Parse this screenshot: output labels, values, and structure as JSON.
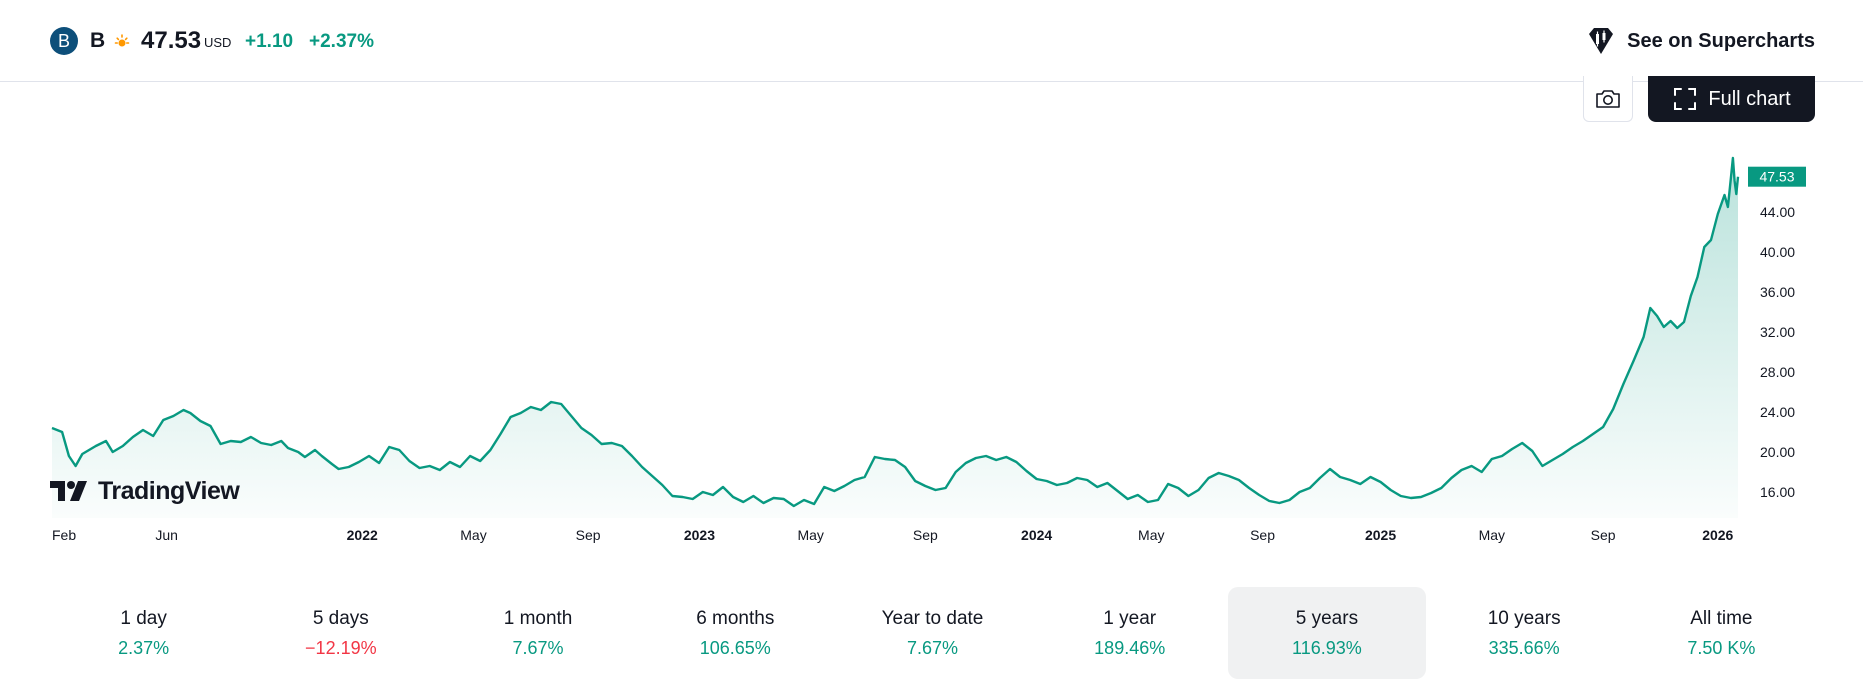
{
  "header": {
    "symbol_logo": "B",
    "symbol": "B",
    "price": "47.53",
    "currency": "USD",
    "change_abs": "+1.10",
    "change_pct": "+2.37%",
    "supercharts_label": "See on Supercharts"
  },
  "toolbar": {
    "full_chart_label": "Full chart"
  },
  "branding": {
    "tv_label": "TradingView"
  },
  "colors": {
    "line": "#089981",
    "positive": "#089981",
    "negative": "#f23645",
    "text": "#131722"
  },
  "chart_data": {
    "type": "area",
    "title": "",
    "xlabel": "",
    "ylabel": "",
    "ylim": [
      14.2,
      51.2
    ],
    "y_ticks": [
      16,
      20,
      24,
      28,
      32,
      36,
      40,
      44
    ],
    "y_tick_labels": [
      "16.00",
      "20.00",
      "24.00",
      "28.00",
      "32.00",
      "36.00",
      "40.00",
      "44.00"
    ],
    "last_price_label": "47.53",
    "last_value": 47.53,
    "x_ticks": [
      {
        "label": "Feb",
        "t": 0.0,
        "bold": false
      },
      {
        "label": "Jun",
        "t": 0.34,
        "bold": false
      },
      {
        "label": "2022",
        "t": 0.92,
        "bold": true
      },
      {
        "label": "May",
        "t": 1.25,
        "bold": false
      },
      {
        "label": "Sep",
        "t": 1.59,
        "bold": false
      },
      {
        "label": "2023",
        "t": 1.92,
        "bold": true
      },
      {
        "label": "May",
        "t": 2.25,
        "bold": false
      },
      {
        "label": "Sep",
        "t": 2.59,
        "bold": false
      },
      {
        "label": "2024",
        "t": 2.92,
        "bold": true
      },
      {
        "label": "May",
        "t": 3.26,
        "bold": false
      },
      {
        "label": "Sep",
        "t": 3.59,
        "bold": false
      },
      {
        "label": "2025",
        "t": 3.94,
        "bold": true
      },
      {
        "label": "May",
        "t": 4.27,
        "bold": false
      },
      {
        "label": "Sep",
        "t": 4.6,
        "bold": false
      },
      {
        "label": "2026",
        "t": 4.94,
        "bold": true
      }
    ],
    "t_max": 5.0,
    "series": [
      {
        "values": [
          [
            0.0,
            22.4
          ],
          [
            0.03,
            22.0
          ],
          [
            0.05,
            19.6
          ],
          [
            0.07,
            18.6
          ],
          [
            0.09,
            19.8
          ],
          [
            0.13,
            20.6
          ],
          [
            0.16,
            21.1
          ],
          [
            0.18,
            20.0
          ],
          [
            0.21,
            20.6
          ],
          [
            0.24,
            21.5
          ],
          [
            0.27,
            22.2
          ],
          [
            0.3,
            21.6
          ],
          [
            0.33,
            23.2
          ],
          [
            0.36,
            23.6
          ],
          [
            0.39,
            24.2
          ],
          [
            0.41,
            23.9
          ],
          [
            0.44,
            23.1
          ],
          [
            0.47,
            22.6
          ],
          [
            0.5,
            20.8
          ],
          [
            0.53,
            21.1
          ],
          [
            0.56,
            21.0
          ],
          [
            0.59,
            21.5
          ],
          [
            0.62,
            20.9
          ],
          [
            0.65,
            20.7
          ],
          [
            0.68,
            21.1
          ],
          [
            0.7,
            20.4
          ],
          [
            0.73,
            20.0
          ],
          [
            0.75,
            19.5
          ],
          [
            0.78,
            20.2
          ],
          [
            0.8,
            19.6
          ],
          [
            0.83,
            18.8
          ],
          [
            0.85,
            18.3
          ],
          [
            0.88,
            18.5
          ],
          [
            0.91,
            19.0
          ],
          [
            0.94,
            19.6
          ],
          [
            0.97,
            18.9
          ],
          [
            1.0,
            20.5
          ],
          [
            1.03,
            20.2
          ],
          [
            1.06,
            19.1
          ],
          [
            1.09,
            18.4
          ],
          [
            1.12,
            18.6
          ],
          [
            1.15,
            18.2
          ],
          [
            1.18,
            19.0
          ],
          [
            1.21,
            18.5
          ],
          [
            1.24,
            19.6
          ],
          [
            1.27,
            19.1
          ],
          [
            1.3,
            20.2
          ],
          [
            1.33,
            21.8
          ],
          [
            1.36,
            23.5
          ],
          [
            1.39,
            23.9
          ],
          [
            1.42,
            24.5
          ],
          [
            1.45,
            24.2
          ],
          [
            1.48,
            25.0
          ],
          [
            1.51,
            24.8
          ],
          [
            1.54,
            23.6
          ],
          [
            1.57,
            22.4
          ],
          [
            1.6,
            21.7
          ],
          [
            1.63,
            20.8
          ],
          [
            1.66,
            20.9
          ],
          [
            1.69,
            20.6
          ],
          [
            1.72,
            19.6
          ],
          [
            1.75,
            18.5
          ],
          [
            1.78,
            17.6
          ],
          [
            1.81,
            16.7
          ],
          [
            1.84,
            15.6
          ],
          [
            1.87,
            15.5
          ],
          [
            1.9,
            15.3
          ],
          [
            1.93,
            16.0
          ],
          [
            1.96,
            15.7
          ],
          [
            1.99,
            16.5
          ],
          [
            2.02,
            15.5
          ],
          [
            2.05,
            15.0
          ],
          [
            2.08,
            15.6
          ],
          [
            2.11,
            14.9
          ],
          [
            2.14,
            15.4
          ],
          [
            2.17,
            15.3
          ],
          [
            2.2,
            14.6
          ],
          [
            2.23,
            15.2
          ],
          [
            2.26,
            14.8
          ],
          [
            2.29,
            16.5
          ],
          [
            2.32,
            16.1
          ],
          [
            2.35,
            16.6
          ],
          [
            2.38,
            17.2
          ],
          [
            2.41,
            17.5
          ],
          [
            2.44,
            19.5
          ],
          [
            2.47,
            19.3
          ],
          [
            2.5,
            19.2
          ],
          [
            2.53,
            18.5
          ],
          [
            2.56,
            17.1
          ],
          [
            2.59,
            16.6
          ],
          [
            2.62,
            16.2
          ],
          [
            2.65,
            16.4
          ],
          [
            2.68,
            18.0
          ],
          [
            2.71,
            18.9
          ],
          [
            2.74,
            19.4
          ],
          [
            2.77,
            19.6
          ],
          [
            2.8,
            19.2
          ],
          [
            2.83,
            19.5
          ],
          [
            2.86,
            19.0
          ],
          [
            2.89,
            18.1
          ],
          [
            2.92,
            17.3
          ],
          [
            2.95,
            17.1
          ],
          [
            2.98,
            16.7
          ],
          [
            3.01,
            16.9
          ],
          [
            3.04,
            17.4
          ],
          [
            3.07,
            17.2
          ],
          [
            3.1,
            16.5
          ],
          [
            3.13,
            16.9
          ],
          [
            3.16,
            16.1
          ],
          [
            3.19,
            15.3
          ],
          [
            3.22,
            15.7
          ],
          [
            3.25,
            15.0
          ],
          [
            3.28,
            15.2
          ],
          [
            3.31,
            16.8
          ],
          [
            3.34,
            16.4
          ],
          [
            3.37,
            15.6
          ],
          [
            3.4,
            16.2
          ],
          [
            3.43,
            17.4
          ],
          [
            3.46,
            17.9
          ],
          [
            3.49,
            17.6
          ],
          [
            3.52,
            17.2
          ],
          [
            3.55,
            16.4
          ],
          [
            3.58,
            15.7
          ],
          [
            3.61,
            15.1
          ],
          [
            3.64,
            14.9
          ],
          [
            3.67,
            15.2
          ],
          [
            3.7,
            16.0
          ],
          [
            3.73,
            16.4
          ],
          [
            3.76,
            17.4
          ],
          [
            3.79,
            18.3
          ],
          [
            3.82,
            17.5
          ],
          [
            3.85,
            17.2
          ],
          [
            3.88,
            16.8
          ],
          [
            3.91,
            17.5
          ],
          [
            3.94,
            17.0
          ],
          [
            3.97,
            16.2
          ],
          [
            4.0,
            15.6
          ],
          [
            4.03,
            15.4
          ],
          [
            4.06,
            15.5
          ],
          [
            4.09,
            15.9
          ],
          [
            4.12,
            16.4
          ],
          [
            4.15,
            17.4
          ],
          [
            4.18,
            18.2
          ],
          [
            4.21,
            18.6
          ],
          [
            4.24,
            18.0
          ],
          [
            4.27,
            19.3
          ],
          [
            4.3,
            19.6
          ],
          [
            4.33,
            20.3
          ],
          [
            4.36,
            20.9
          ],
          [
            4.39,
            20.1
          ],
          [
            4.42,
            18.6
          ],
          [
            4.45,
            19.2
          ],
          [
            4.48,
            19.8
          ],
          [
            4.51,
            20.5
          ],
          [
            4.54,
            21.1
          ],
          [
            4.57,
            21.8
          ],
          [
            4.6,
            22.5
          ],
          [
            4.63,
            24.3
          ],
          [
            4.66,
            26.8
          ],
          [
            4.69,
            29.1
          ],
          [
            4.72,
            31.5
          ],
          [
            4.74,
            34.4
          ],
          [
            4.76,
            33.6
          ],
          [
            4.78,
            32.5
          ],
          [
            4.8,
            33.1
          ],
          [
            4.82,
            32.4
          ],
          [
            4.84,
            33.0
          ],
          [
            4.86,
            35.6
          ],
          [
            4.88,
            37.5
          ],
          [
            4.9,
            40.5
          ],
          [
            4.92,
            41.2
          ],
          [
            4.94,
            43.8
          ],
          [
            4.96,
            45.7
          ],
          [
            4.97,
            44.5
          ],
          [
            4.98,
            47.8
          ],
          [
            4.985,
            49.4
          ],
          [
            4.99,
            47.1
          ],
          [
            4.995,
            45.8
          ],
          [
            5.0,
            47.53
          ]
        ]
      }
    ]
  },
  "periods": [
    {
      "label": "1 day",
      "value": "2.37%",
      "negative": false,
      "active": false
    },
    {
      "label": "5 days",
      "value": "−12.19%",
      "negative": true,
      "active": false
    },
    {
      "label": "1 month",
      "value": "7.67%",
      "negative": false,
      "active": false
    },
    {
      "label": "6 months",
      "value": "106.65%",
      "negative": false,
      "active": false
    },
    {
      "label": "Year to date",
      "value": "7.67%",
      "negative": false,
      "active": false
    },
    {
      "label": "1 year",
      "value": "189.46%",
      "negative": false,
      "active": false
    },
    {
      "label": "5 years",
      "value": "116.93%",
      "negative": false,
      "active": true
    },
    {
      "label": "10 years",
      "value": "335.66%",
      "negative": false,
      "active": false
    },
    {
      "label": "All time",
      "value": "7.50 K%",
      "negative": false,
      "active": false
    }
  ]
}
